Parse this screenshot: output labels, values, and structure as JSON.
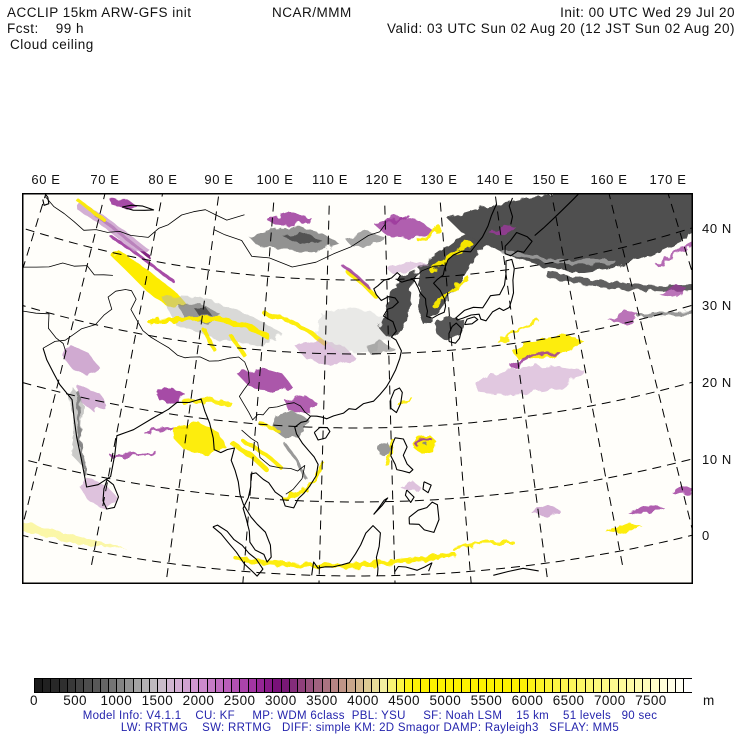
{
  "header": {
    "model_id": "ACCLIP 15km ARW-GFS init",
    "center_name": "NCAR/MMM",
    "init_time": "Init: 00 UTC Wed 29 Jul 20",
    "fcst_hour": "Fcst:    99 h",
    "valid_time": "Valid: 03 UTC Sun 02 Aug 20 (12 JST Sun 02 Aug 20)",
    "field_name": "Cloud ceiling"
  },
  "map": {
    "top_axis_labels": [
      "60 E",
      "70 E",
      "80 E",
      "90 E",
      "100 E",
      "110 E",
      "120 E",
      "130 E",
      "140 E",
      "150 E",
      "160 E",
      "170 E"
    ],
    "top_axis_lons": [
      60,
      70,
      80,
      90,
      100,
      110,
      120,
      130,
      140,
      150,
      160,
      170
    ],
    "right_axis_labels": [
      "40 N",
      "30 N",
      "20 N",
      "10 N",
      "0"
    ],
    "right_axis_lats": [
      40,
      30,
      20,
      10,
      0
    ]
  },
  "colorbar": {
    "unit": "m",
    "range_m": [
      0,
      8000
    ],
    "cell_step_m": 100,
    "tick_labels": [
      "0",
      "500",
      "1000",
      "1500",
      "2000",
      "2500",
      "3000",
      "3500",
      "4000",
      "4500",
      "5000",
      "5500",
      "6000",
      "6500",
      "7000",
      "7500"
    ],
    "stops": [
      [
        0,
        "#161616"
      ],
      [
        400,
        "#333333"
      ],
      [
        800,
        "#5d5d5d"
      ],
      [
        1100,
        "#8a8a8a"
      ],
      [
        1300,
        "#ababab"
      ],
      [
        1500,
        "#c6bfc6"
      ],
      [
        1700,
        "#d4b2d4"
      ],
      [
        2000,
        "#cf92cf"
      ],
      [
        2300,
        "#bc63bc"
      ],
      [
        2600,
        "#a83ca8"
      ],
      [
        2800,
        "#8f1f8f"
      ],
      [
        3000,
        "#720c72"
      ],
      [
        3100,
        "#7e2379"
      ],
      [
        3300,
        "#94487c"
      ],
      [
        3500,
        "#a56a80"
      ],
      [
        3700,
        "#bb8c85"
      ],
      [
        3900,
        "#ceae8d"
      ],
      [
        4100,
        "#e2d395"
      ],
      [
        4250,
        "#f2efa0"
      ],
      [
        4400,
        "#fbf75e"
      ],
      [
        4550,
        "#fdf412"
      ],
      [
        4700,
        "#fdf100"
      ],
      [
        5900,
        "#fdf100"
      ],
      [
        6400,
        "#fdf54a"
      ],
      [
        6900,
        "#fdf981"
      ],
      [
        7400,
        "#fefcb4"
      ],
      [
        7700,
        "#fffee0"
      ],
      [
        7950,
        "#ffffff"
      ],
      [
        8000,
        "#ffffff"
      ]
    ]
  },
  "palette": {
    "dark_gray": "#4f4f4f",
    "gray": "#7f7f7f",
    "light_gray": "#b3b3b3",
    "pale_gray": "#d4d4d4",
    "dark_purple": "#740b74",
    "purple": "#9c399c",
    "light_purple": "#c89bca",
    "yellow": "#fdec00",
    "pale_yellow": "#fbf7a3"
  },
  "model_info": {
    "line1": "Model Info: V4.1.1    CU: KF     MP: WDM 6class  PBL: YSU     SF: Noah LSM    15 km    51 levels   90 sec",
    "line2": "LW: RRTMG    SW: RRTMG   DIFF: simple KM: 2D Smagor DAMP: Rayleigh3   SFLAY: MM5"
  }
}
